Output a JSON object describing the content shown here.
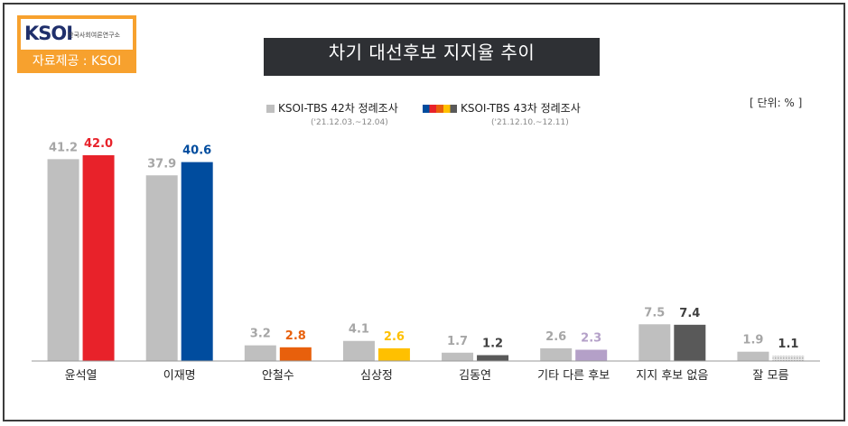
{
  "logo": {
    "mark": "KSOI",
    "org_name": "한국사회여론연구소"
  },
  "source_label": "자료제공 : KSOI",
  "unit_label": "[ 단위: % ]",
  "legend": [
    {
      "label": "KSOI-TBS 42차 정례조사",
      "period": "('21.12.03.~12.04)"
    },
    {
      "label": "KSOI-TBS 43차 정례조사",
      "period": "('21.12.10.~12.11)"
    }
  ],
  "colors": {
    "previous": "#bfbfbf",
    "yoon": "#e8222a",
    "lee": "#004c9e",
    "ahn": "#e8600c",
    "sim": "#ffc000",
    "kim": "#595959",
    "other": "#b4a0c8",
    "none": "#595959",
    "dunno": "#d0d0d0",
    "axis": "#9a9a9a",
    "prev_label": "#a6a6a6"
  },
  "chart_data": {
    "type": "bar",
    "title": "차기 대선후보 지지율 추이",
    "categories": [
      "윤석열",
      "이재명",
      "안철수",
      "심상정",
      "김동연",
      "기타 다른 후보",
      "지지 후보 없음",
      "잘 모름"
    ],
    "series": [
      {
        "name": "KSOI-TBS 42차 정례조사",
        "values": [
          41.2,
          37.9,
          3.2,
          4.1,
          1.7,
          2.6,
          7.5,
          1.9
        ]
      },
      {
        "name": "KSOI-TBS 43차 정례조사",
        "values": [
          42.0,
          40.6,
          2.8,
          2.6,
          1.2,
          2.3,
          7.4,
          1.1
        ]
      }
    ],
    "series2_colors": [
      "#e8222a",
      "#004c9e",
      "#e8600c",
      "#ffc000",
      "#595959",
      "#b4a0c8",
      "#595959",
      "#d0d0d0"
    ],
    "ylim": [
      0,
      42
    ],
    "xlabel": "",
    "ylabel": ""
  }
}
